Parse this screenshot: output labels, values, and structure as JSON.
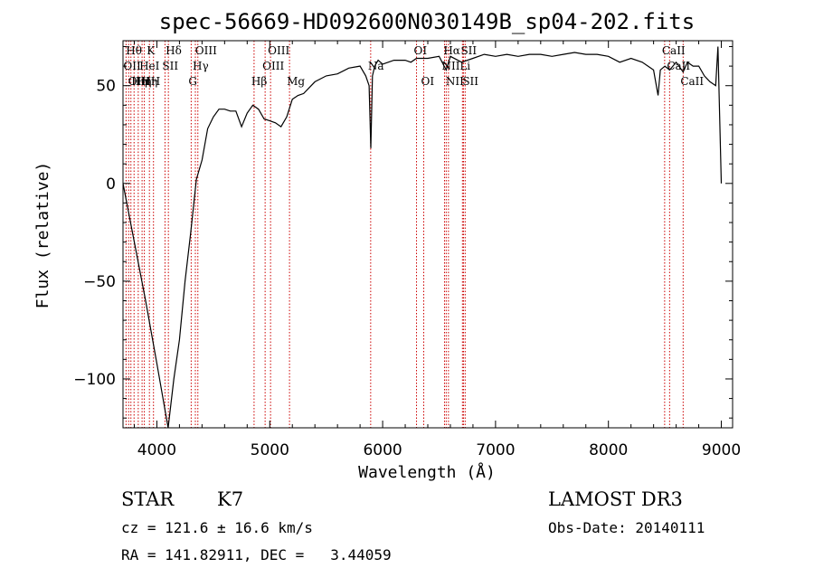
{
  "chart_data": {
    "type": "line",
    "title": "spec-56669-HD092600N030149B_sp04-202.fits",
    "xlabel": "Wavelength (Å)",
    "ylabel": "Flux (relative)",
    "xlim": [
      3700,
      9100
    ],
    "ylim": [
      -125,
      73
    ],
    "xticks": [
      4000,
      5000,
      6000,
      7000,
      8000,
      9000
    ],
    "xtick_labels": [
      "4000",
      "5000",
      "6000",
      "7000",
      "8000",
      "9000"
    ],
    "yticks": [
      -100,
      -50,
      0,
      50
    ],
    "ytick_labels": [
      "−100",
      "−50",
      "0",
      "50"
    ],
    "series": [
      {
        "x": [
          3700,
          3800,
          3900,
          4000,
          4100,
          4150,
          4200,
          4250,
          4300,
          4350,
          4400,
          4450,
          4500,
          4550,
          4600,
          4650,
          4700,
          4750,
          4800,
          4850,
          4900,
          4950,
          5000,
          5050,
          5100,
          5150,
          5200,
          5250,
          5300,
          5400,
          5500,
          5600,
          5700,
          5800,
          5850,
          5880,
          5895,
          5910,
          5930,
          5960,
          6000,
          6100,
          6200,
          6250,
          6300,
          6400,
          6500,
          6563,
          6600,
          6700,
          6800,
          6900,
          7000,
          7100,
          7200,
          7300,
          7400,
          7500,
          7600,
          7700,
          7800,
          7900,
          8000,
          8100,
          8200,
          8300,
          8400,
          8440,
          8460,
          8500,
          8542,
          8600,
          8662,
          8700,
          8750,
          8800,
          8850,
          8900,
          8950,
          8970,
          9000
        ],
        "y": [
          0,
          -30,
          -60,
          -92,
          -125,
          -100,
          -80,
          -50,
          -25,
          2,
          12,
          28,
          34,
          38,
          38,
          37,
          37,
          29,
          36,
          40,
          38,
          33,
          32,
          31,
          29,
          34,
          43,
          45,
          46,
          52,
          55,
          56,
          59,
          60,
          55,
          50,
          18,
          55,
          60,
          63,
          61,
          63,
          63,
          62,
          64,
          64,
          65,
          58,
          65,
          62,
          64,
          66,
          65,
          66,
          65,
          66,
          66,
          65,
          66,
          67,
          66,
          66,
          65,
          62,
          64,
          62,
          58,
          45,
          58,
          60,
          58,
          62,
          57,
          62,
          60,
          60,
          55,
          52,
          50,
          70,
          0
        ]
      }
    ],
    "line_markers": [
      {
        "w": 3727,
        "label": "OII",
        "row": 2
      },
      {
        "w": 3750,
        "label": "Hθ",
        "row": 1
      },
      {
        "w": 3770,
        "label": "OIII",
        "row": 3
      },
      {
        "w": 3798,
        "label": "Hη",
        "row": 3
      },
      {
        "w": 3835,
        "label": "Hη",
        "row": 3
      },
      {
        "w": 3869,
        "label": "HeI",
        "row": 2
      },
      {
        "w": 3889,
        "label": "Hη",
        "row": 3
      },
      {
        "w": 3934,
        "label": "K",
        "row": 1
      },
      {
        "w": 3970,
        "label": "H",
        "row": 3
      },
      {
        "w": 4072,
        "label": "SII",
        "row": 2
      },
      {
        "w": 4102,
        "label": "Hδ",
        "row": 1
      },
      {
        "w": 4304,
        "label": "G",
        "row": 3
      },
      {
        "w": 4341,
        "label": "Hγ",
        "row": 2
      },
      {
        "w": 4363,
        "label": "OIII",
        "row": 1
      },
      {
        "w": 4861,
        "label": "Hβ",
        "row": 3
      },
      {
        "w": 4959,
        "label": "OIII",
        "row": 2
      },
      {
        "w": 5007,
        "label": "OIII",
        "row": 1
      },
      {
        "w": 5175,
        "label": "Mg",
        "row": 3
      },
      {
        "w": 5894,
        "label": "Na",
        "row": 2
      },
      {
        "w": 6300,
        "label": "OI",
        "row": 1
      },
      {
        "w": 6364,
        "label": "OI",
        "row": 3
      },
      {
        "w": 6548,
        "label": "NII",
        "row": 2
      },
      {
        "w": 6563,
        "label": "Hα",
        "row": 1
      },
      {
        "w": 6583,
        "label": "NII",
        "row": 3
      },
      {
        "w": 6707,
        "label": "Li",
        "row": 2
      },
      {
        "w": 6716,
        "label": "SII",
        "row": 1
      },
      {
        "w": 6731,
        "label": "SII",
        "row": 3
      },
      {
        "w": 8498,
        "label": "CaII",
        "row": 1
      },
      {
        "w": 8542,
        "label": "CaII",
        "row": 2
      },
      {
        "w": 8662,
        "label": "CaII",
        "row": 3
      }
    ],
    "marker_color": "#cc0000",
    "line_color": "#000000"
  },
  "info": {
    "class_label": "STAR",
    "subclass": "K7",
    "survey": "LAMOST DR3",
    "cz": "cz = 121.6 ± 16.6 km/s",
    "obs_date": "Obs-Date: 20140111",
    "radec": "RA = 141.82911, DEC =   3.44059"
  }
}
